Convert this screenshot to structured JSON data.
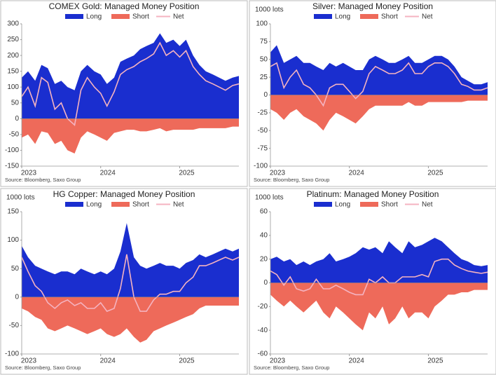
{
  "chart_data": [
    {
      "type": "area",
      "title": "COMEX Gold: Managed Money Position",
      "source": "Source: Bloomberg, Saxo Group",
      "x": [
        2023,
        2023.08,
        2023.17,
        2023.25,
        2023.33,
        2023.42,
        2023.5,
        2023.58,
        2023.67,
        2023.75,
        2023.83,
        2023.92,
        2024,
        2024.08,
        2024.17,
        2024.25,
        2024.33,
        2024.42,
        2024.5,
        2024.58,
        2024.67,
        2024.75,
        2024.83,
        2024.92,
        2025,
        2025.08,
        2025.17,
        2025.25,
        2025.33,
        2025.42,
        2025.5,
        2025.58,
        2025.67,
        2025.75
      ],
      "series": [
        {
          "name": "Long",
          "style": "area",
          "color": "#1a2ecf",
          "values": [
            130,
            150,
            120,
            170,
            160,
            110,
            120,
            100,
            90,
            150,
            170,
            150,
            140,
            110,
            130,
            180,
            190,
            200,
            220,
            230,
            240,
            270,
            240,
            250,
            230,
            250,
            200,
            170,
            150,
            140,
            130,
            120,
            130,
            135
          ]
        },
        {
          "name": "Short",
          "style": "area",
          "color": "#ee6a5a",
          "values": [
            -60,
            -50,
            -80,
            -40,
            -45,
            -80,
            -70,
            -100,
            -110,
            -60,
            -40,
            -50,
            -60,
            -70,
            -45,
            -40,
            -35,
            -35,
            -40,
            -40,
            -35,
            -30,
            -40,
            -35,
            -35,
            -35,
            -35,
            -30,
            -30,
            -30,
            -30,
            -30,
            -25,
            -25
          ]
        },
        {
          "name": "Net",
          "style": "line",
          "color": "#f5b3c0",
          "values": [
            70,
            100,
            40,
            130,
            115,
            30,
            50,
            0,
            -20,
            90,
            130,
            100,
            80,
            40,
            85,
            140,
            155,
            165,
            180,
            190,
            205,
            240,
            200,
            215,
            195,
            215,
            165,
            140,
            120,
            110,
            100,
            90,
            105,
            110
          ]
        }
      ],
      "xlim": [
        2023,
        2025.75
      ],
      "xticks": [
        2023,
        2024,
        2025
      ],
      "ylim": [
        -150,
        300
      ],
      "yticks": [
        -150,
        -100,
        -50,
        0,
        50,
        100,
        150,
        200,
        250,
        300
      ]
    },
    {
      "type": "area",
      "title": "Silver: Managed Money Position",
      "ylabel": "1000 lots",
      "source": "Source: Bloomberg, Saxo Group",
      "x": [
        2023,
        2023.08,
        2023.17,
        2023.25,
        2023.33,
        2023.42,
        2023.5,
        2023.58,
        2023.67,
        2023.75,
        2023.83,
        2023.92,
        2024,
        2024.08,
        2024.17,
        2024.25,
        2024.33,
        2024.42,
        2024.5,
        2024.58,
        2024.67,
        2024.75,
        2024.83,
        2024.92,
        2025,
        2025.08,
        2025.17,
        2025.25,
        2025.33,
        2025.42,
        2025.5,
        2025.58,
        2025.67,
        2025.75
      ],
      "series": [
        {
          "name": "Long",
          "style": "area",
          "color": "#1a2ecf",
          "values": [
            60,
            70,
            45,
            50,
            55,
            45,
            45,
            40,
            35,
            45,
            40,
            45,
            40,
            35,
            35,
            50,
            55,
            50,
            45,
            45,
            50,
            55,
            45,
            45,
            50,
            55,
            55,
            50,
            40,
            25,
            20,
            15,
            15,
            18
          ]
        },
        {
          "name": "Short",
          "style": "area",
          "color": "#ee6a5a",
          "values": [
            -20,
            -25,
            -35,
            -25,
            -20,
            -30,
            -35,
            -40,
            -50,
            -35,
            -25,
            -30,
            -35,
            -40,
            -30,
            -20,
            -15,
            -15,
            -15,
            -15,
            -15,
            -10,
            -15,
            -15,
            -10,
            -10,
            -10,
            -10,
            -10,
            -10,
            -8,
            -8,
            -8,
            -8
          ]
        },
        {
          "name": "Net",
          "style": "line",
          "color": "#f5b3c0",
          "values": [
            40,
            45,
            10,
            25,
            35,
            15,
            10,
            0,
            -15,
            10,
            15,
            15,
            5,
            -5,
            5,
            30,
            40,
            35,
            30,
            30,
            35,
            45,
            30,
            30,
            40,
            45,
            45,
            40,
            30,
            15,
            12,
            7,
            7,
            10
          ]
        }
      ],
      "xlim": [
        2023,
        2025.75
      ],
      "xticks": [
        2023,
        2024,
        2025
      ],
      "ylim": [
        -100,
        100
      ],
      "yticks": [
        -100,
        -75,
        -50,
        -25,
        0,
        25,
        50,
        75,
        100
      ]
    },
    {
      "type": "area",
      "title": "HG Copper: Managed Money Position",
      "ylabel": "1000 lots",
      "source": "Source: Bloomberg, Saxo Group",
      "x": [
        2023,
        2023.08,
        2023.17,
        2023.25,
        2023.33,
        2023.42,
        2023.5,
        2023.58,
        2023.67,
        2023.75,
        2023.83,
        2023.92,
        2024,
        2024.08,
        2024.17,
        2024.25,
        2024.33,
        2024.42,
        2024.5,
        2024.58,
        2024.67,
        2024.75,
        2024.83,
        2024.92,
        2025,
        2025.08,
        2025.17,
        2025.25,
        2025.33,
        2025.42,
        2025.5,
        2025.58,
        2025.67,
        2025.75
      ],
      "series": [
        {
          "name": "Long",
          "style": "area",
          "color": "#1a2ecf",
          "values": [
            90,
            70,
            55,
            50,
            45,
            40,
            45,
            45,
            40,
            50,
            45,
            40,
            45,
            40,
            50,
            80,
            130,
            70,
            55,
            50,
            55,
            60,
            55,
            55,
            50,
            60,
            65,
            75,
            70,
            75,
            80,
            85,
            80,
            85
          ]
        },
        {
          "name": "Short",
          "style": "area",
          "color": "#ee6a5a",
          "values": [
            -20,
            -25,
            -35,
            -40,
            -55,
            -60,
            -55,
            -50,
            -55,
            -60,
            -65,
            -60,
            -55,
            -65,
            -70,
            -65,
            -55,
            -70,
            -80,
            -75,
            -60,
            -55,
            -50,
            -45,
            -40,
            -35,
            -30,
            -20,
            -15,
            -15,
            -15,
            -15,
            -15,
            -15
          ]
        },
        {
          "name": "Net",
          "style": "line",
          "color": "#f5b3c0",
          "values": [
            70,
            45,
            20,
            10,
            -10,
            -20,
            -10,
            -5,
            -15,
            -10,
            -20,
            -20,
            -10,
            -25,
            -20,
            15,
            75,
            0,
            -25,
            -25,
            -5,
            5,
            5,
            10,
            10,
            25,
            35,
            55,
            55,
            60,
            65,
            70,
            65,
            70
          ]
        }
      ],
      "xlim": [
        2023,
        2025.75
      ],
      "xticks": [
        2023,
        2024,
        2025
      ],
      "ylim": [
        -100,
        150
      ],
      "yticks": [
        -100,
        -50,
        0,
        50,
        100,
        150
      ]
    },
    {
      "type": "area",
      "title": "Platinum: Managed Money Position",
      "ylabel": "1000 lots",
      "source": "Source: Bloomberg, Saxo Group",
      "x": [
        2023,
        2023.08,
        2023.17,
        2023.25,
        2023.33,
        2023.42,
        2023.5,
        2023.58,
        2023.67,
        2023.75,
        2023.83,
        2023.92,
        2024,
        2024.08,
        2024.17,
        2024.25,
        2024.33,
        2024.42,
        2024.5,
        2024.58,
        2024.67,
        2024.75,
        2024.83,
        2024.92,
        2025,
        2025.08,
        2025.17,
        2025.25,
        2025.33,
        2025.42,
        2025.5,
        2025.58,
        2025.67,
        2025.75
      ],
      "series": [
        {
          "name": "Long",
          "style": "area",
          "color": "#1a2ecf",
          "values": [
            20,
            22,
            18,
            20,
            15,
            18,
            15,
            18,
            20,
            25,
            18,
            20,
            22,
            25,
            30,
            28,
            30,
            25,
            35,
            30,
            25,
            35,
            30,
            32,
            35,
            38,
            35,
            30,
            25,
            20,
            18,
            15,
            14,
            15
          ]
        },
        {
          "name": "Short",
          "style": "area",
          "color": "#ee6a5a",
          "values": [
            -10,
            -15,
            -20,
            -15,
            -20,
            -25,
            -20,
            -15,
            -25,
            -30,
            -20,
            -25,
            -30,
            -35,
            -40,
            -25,
            -30,
            -20,
            -35,
            -30,
            -20,
            -30,
            -25,
            -25,
            -30,
            -20,
            -15,
            -10,
            -10,
            -8,
            -8,
            -6,
            -6,
            -6
          ]
        },
        {
          "name": "Net",
          "style": "line",
          "color": "#f5b3c0",
          "values": [
            10,
            7,
            -2,
            5,
            -5,
            -7,
            -5,
            3,
            -5,
            -5,
            -2,
            -5,
            -8,
            -10,
            -10,
            3,
            0,
            5,
            0,
            0,
            5,
            5,
            5,
            7,
            5,
            18,
            20,
            20,
            15,
            12,
            10,
            9,
            8,
            9
          ]
        }
      ],
      "xlim": [
        2023,
        2025.75
      ],
      "xticks": [
        2023,
        2024,
        2025
      ],
      "ylim": [
        -60,
        60
      ],
      "yticks": [
        -60,
        -40,
        -20,
        0,
        20,
        40,
        60
      ]
    }
  ]
}
